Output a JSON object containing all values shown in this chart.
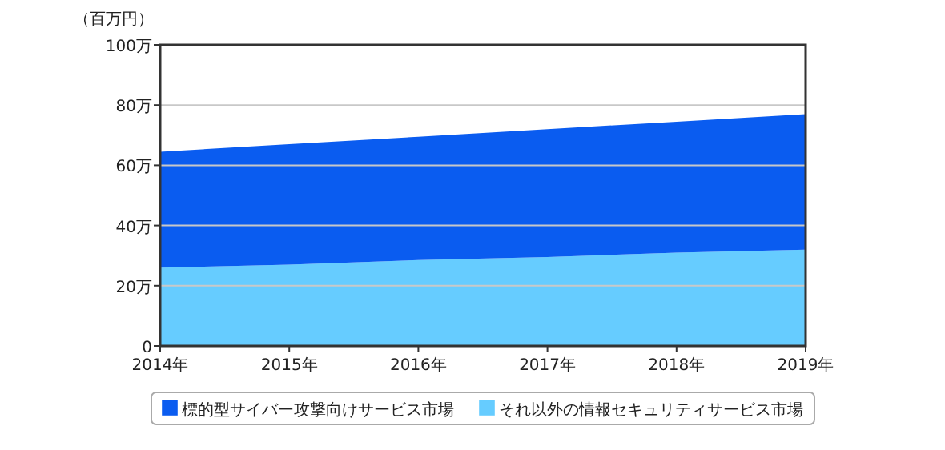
{
  "chart_data": {
    "type": "area",
    "stacked": true,
    "ylabel": "（百万円）",
    "x": [
      2014,
      2015,
      2016,
      2017,
      2018,
      2019
    ],
    "series": [
      {
        "name": "それ以外の情報セキュリティサービス市場",
        "color": "#66ccff",
        "values": [
          26,
          27,
          28.5,
          29.5,
          31,
          32
        ]
      },
      {
        "name": "標的型サイバー攻撃向けサービス市場",
        "color": "#0a5cf0",
        "values": [
          38.5,
          40,
          41,
          42.5,
          43.5,
          45
        ]
      }
    ],
    "xlim": [
      2014,
      2019
    ],
    "xticks": [
      {
        "value": 2014,
        "label": "2014年"
      },
      {
        "value": 2015,
        "label": "2015年"
      },
      {
        "value": 2016,
        "label": "2016年"
      },
      {
        "value": 2017,
        "label": "2017年"
      },
      {
        "value": 2018,
        "label": "2018年"
      },
      {
        "value": 2019,
        "label": "2019年"
      }
    ],
    "ylim": [
      0,
      100
    ],
    "yticks": [
      0,
      {
        "value": 20,
        "label": "20万"
      },
      {
        "value": 40,
        "label": "40万"
      },
      {
        "value": 60,
        "label": "60万"
      },
      {
        "value": 80,
        "label": "80万"
      },
      {
        "value": 100,
        "label": "100万"
      }
    ],
    "grid": "y",
    "legend": "bottom"
  }
}
